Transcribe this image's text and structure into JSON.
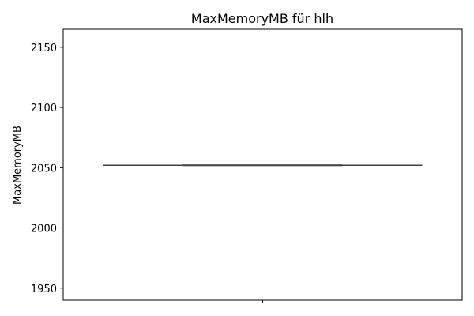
{
  "chart_data": {
    "type": "box",
    "title": "MaxMemoryMB für hlh",
    "xlabel": "",
    "ylabel": "MaxMemoryMB",
    "ylim": [
      1940,
      2165
    ],
    "yticks": [
      1950,
      2000,
      2050,
      2100,
      2150
    ],
    "grid": false,
    "series": [
      {
        "values": {
          "min": 2052,
          "q1": 2052,
          "median": 2052,
          "q3": 2052,
          "max": 2052
        }
      }
    ]
  },
  "colors": {
    "axis": "#000000",
    "box_line": "#3f3f3f"
  }
}
